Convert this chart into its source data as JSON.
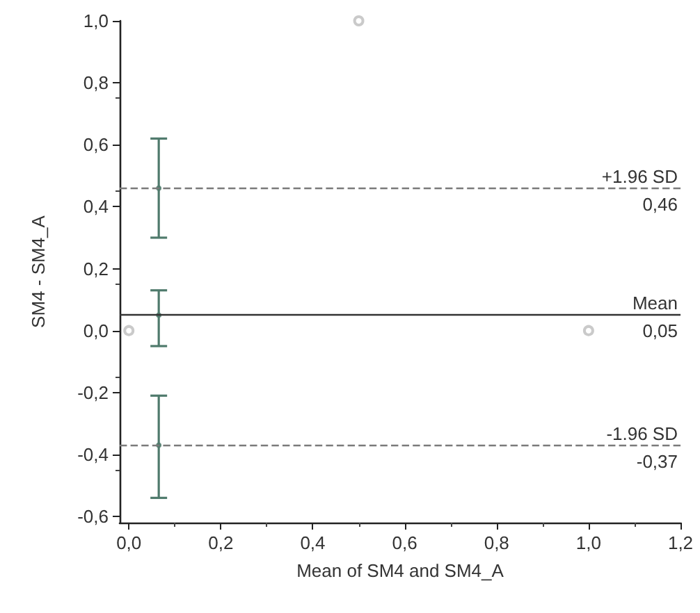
{
  "chart_data": {
    "type": "scatter",
    "xlabel": "Mean of SM4 and SM4_A",
    "ylabel": "SM4 - SM4_A",
    "xlim": [
      -0.02,
      1.2
    ],
    "ylim": [
      -0.62,
      1.0
    ],
    "xticks": [
      {
        "value": 0,
        "label": "0,0"
      },
      {
        "value": 0.2,
        "label": "0,2"
      },
      {
        "value": 0.4,
        "label": "0,4"
      },
      {
        "value": 0.6,
        "label": "0,6"
      },
      {
        "value": 0.8,
        "label": "0,8"
      },
      {
        "value": 1.0,
        "label": "1,0"
      },
      {
        "value": 1.2,
        "label": "1,2"
      }
    ],
    "yticks": [
      {
        "value": -0.6,
        "label": "-0,6"
      },
      {
        "value": -0.4,
        "label": "-0,4"
      },
      {
        "value": -0.2,
        "label": "-0,2"
      },
      {
        "value": 0,
        "label": "0,0"
      },
      {
        "value": 0.2,
        "label": "0,2"
      },
      {
        "value": 0.4,
        "label": "0,4"
      },
      {
        "value": 0.6,
        "label": "0,6"
      },
      {
        "value": 0.8,
        "label": "0,8"
      },
      {
        "value": 1.0,
        "label": "1,0"
      }
    ],
    "grid": false,
    "series": [
      {
        "type": "scatter",
        "color": "#bdbdbd",
        "marker": "circle",
        "x": [
          0.0,
          0.5,
          1.0
        ],
        "values": [
          0.0,
          1.0,
          0.0
        ]
      },
      {
        "type": "scatter",
        "color": "#4f7a6c",
        "marker": "dot",
        "x": [
          0.065,
          0.065,
          0.065
        ],
        "values": [
          0.46,
          0.05,
          -0.37
        ],
        "errors": [
          [
            0.3,
            0.62
          ],
          [
            -0.05,
            0.13
          ],
          [
            -0.54,
            -0.21
          ]
        ]
      }
    ],
    "ref_lines": [
      {
        "axis": "y",
        "value": 0.46,
        "label": "+1.96 SD",
        "color": "#7a7a7a",
        "line_style": "dashed"
      },
      {
        "axis": "y",
        "value": 0.05,
        "label": "Mean",
        "color": "#333333",
        "line_style": "solid"
      },
      {
        "axis": "y",
        "value": -0.37,
        "label": "-1.96 SD",
        "color": "#7a7a7a",
        "line_style": "dashed"
      }
    ],
    "annotations": [
      {
        "text": "0,46",
        "y": 0.46
      },
      {
        "text": "0,05",
        "y": 0.05
      },
      {
        "text": "-0,37",
        "y": -0.37
      }
    ]
  }
}
